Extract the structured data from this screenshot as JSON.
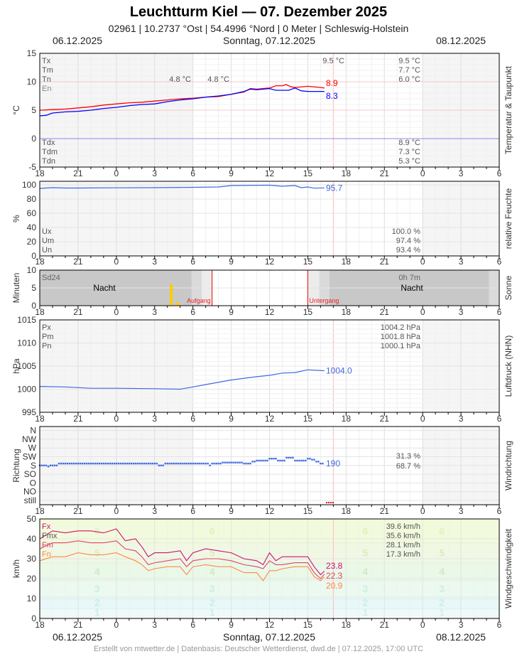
{
  "header": {
    "title": "Leuchtturm Kiel  —  07. Dezember 2025",
    "subtitle": "02961  |  10.2737 °Ost  |  54.4996 °Nord  |  0 Meter  |  Schleswig-Holstein",
    "date_left": "06.12.2025",
    "date_center": "Sonntag, 07.12.2025",
    "date_right": "08.12.2025"
  },
  "footer": "Erstellt von mtwetter.de | Datenbasis: Deutscher Wetterdienst, dwd.de | 07.12.2025, 17:00 UTC",
  "x_ticks": [
    "18",
    "21",
    "0",
    "3",
    "6",
    "9",
    "12",
    "15",
    "18",
    "21",
    "0",
    "3",
    "6"
  ],
  "chart_data": [
    {
      "type": "line",
      "title": "Temperatur & Taupunkt",
      "ylabel": "°C",
      "ylim": [
        -5,
        15
      ],
      "yticks": [
        "-5",
        "0",
        "5",
        "10",
        "15"
      ],
      "stats_labels": [
        "Tx",
        "Tm",
        "Tn",
        "En",
        "Tdx",
        "Tdm",
        "Tdn"
      ],
      "stats_values": {
        "Tx": "9.5 °C",
        "Tm": "7.7 °C",
        "Tn": "6.0 °C",
        "Tdx": "8.9 °C",
        "Tdm": "7.3 °C",
        "Tdn": "5.3 °C"
      },
      "annotations": {
        "max_today": "9.5 °C",
        "min_a": "4.8 °C",
        "min_b": "4.8 °C"
      },
      "series": [
        {
          "name": "Temperatur",
          "color": "#ff0000",
          "last": "8.9",
          "points": [
            [
              0,
              5.0
            ],
            [
              1,
              5.1
            ],
            [
              2,
              5.2
            ],
            [
              3,
              5.4
            ],
            [
              4,
              5.6
            ],
            [
              5,
              5.9
            ],
            [
              6,
              6.1
            ],
            [
              7,
              6.3
            ],
            [
              8,
              6.4
            ],
            [
              9,
              6.6
            ],
            [
              10,
              6.8
            ],
            [
              11,
              7.0
            ],
            [
              12,
              7.1
            ],
            [
              13,
              7.3
            ],
            [
              14,
              7.4
            ],
            [
              15,
              7.8
            ],
            [
              16,
              8.2
            ],
            [
              16.5,
              8.8
            ],
            [
              17,
              8.7
            ],
            [
              18,
              8.9
            ],
            [
              18.5,
              9.3
            ],
            [
              19,
              9.3
            ],
            [
              19.3,
              9.5
            ],
            [
              19.7,
              9.1
            ],
            [
              20,
              9.0
            ],
            [
              21,
              9.2
            ],
            [
              22,
              9.0
            ],
            [
              22.3,
              8.9
            ]
          ]
        },
        {
          "name": "Taupunkt",
          "color": "#0000ff",
          "last": "8.3",
          "points": [
            [
              0,
              4.0
            ],
            [
              0.5,
              4.1
            ],
            [
              1,
              4.5
            ],
            [
              2,
              4.7
            ],
            [
              3,
              4.8
            ],
            [
              4,
              5.0
            ],
            [
              5,
              5.3
            ],
            [
              6,
              5.5
            ],
            [
              7,
              5.8
            ],
            [
              8,
              6.0
            ],
            [
              9,
              6.1
            ],
            [
              10,
              6.5
            ],
            [
              11,
              6.8
            ],
            [
              12,
              7.0
            ],
            [
              13,
              7.3
            ],
            [
              14,
              7.5
            ],
            [
              15,
              7.8
            ],
            [
              16,
              8.3
            ],
            [
              16.5,
              8.7
            ],
            [
              17,
              8.6
            ],
            [
              18,
              8.8
            ],
            [
              18.5,
              8.5
            ],
            [
              19,
              8.5
            ],
            [
              19.5,
              8.5
            ],
            [
              20,
              8.9
            ],
            [
              20.5,
              8.4
            ],
            [
              21,
              8.3
            ],
            [
              22.3,
              8.3
            ]
          ]
        }
      ]
    },
    {
      "type": "line",
      "title": "relative Feuchte",
      "ylabel": "%",
      "ylim": [
        0,
        105
      ],
      "yticks": [
        "0",
        "20",
        "40",
        "60",
        "80",
        "100"
      ],
      "stats_labels": [
        "Ux",
        "Um",
        "Un"
      ],
      "stats_values": {
        "Ux": "100.0 %",
        "Um": "97.4 %",
        "Un": "93.4 %"
      },
      "series": [
        {
          "name": "Feuchte",
          "color": "#4169e1",
          "last": "95.7",
          "points": [
            [
              0,
              95
            ],
            [
              1,
              96
            ],
            [
              2,
              95.5
            ],
            [
              3,
              95.5
            ],
            [
              6,
              95.8
            ],
            [
              9,
              96
            ],
            [
              12,
              96.5
            ],
            [
              14,
              97
            ],
            [
              15,
              99
            ],
            [
              18,
              99.5
            ],
            [
              19,
              98
            ],
            [
              20,
              99
            ],
            [
              20.5,
              96
            ],
            [
              21,
              97
            ],
            [
              21.5,
              95.3
            ],
            [
              22.3,
              95.7
            ]
          ]
        }
      ]
    },
    {
      "type": "bar",
      "title": "Sonne",
      "ylabel": "Minuten",
      "ylim": [
        0,
        10
      ],
      "yticks": [
        "0",
        "5",
        "10"
      ],
      "stats_labels": [
        "Sd24"
      ],
      "stats_values": {
        "Sd24": "0h 7m"
      },
      "night_label": "Nacht",
      "sunrise_label": "Aufgang",
      "sunset_label": "Untergang",
      "sunrise_h": 13.5,
      "sunset_h": 21.0,
      "bars": [
        [
          10.3,
          6
        ],
        [
          10.8,
          1
        ]
      ]
    },
    {
      "type": "line",
      "title": "Luftdruck (NHN)",
      "ylabel": "hPa",
      "ylim": [
        995,
        1015
      ],
      "yticks": [
        "995",
        "1000",
        "1005",
        "1010",
        "1015"
      ],
      "stats_labels": [
        "Px",
        "Pm",
        "Pn"
      ],
      "stats_values": {
        "Px": "1004.2 hPa",
        "Pm": "1001.8 hPa",
        "Pn": "1000.1 hPa"
      },
      "series": [
        {
          "name": "Luftdruck",
          "color": "#4169e1",
          "last": "1004.0",
          "points": [
            [
              0,
              1000.6
            ],
            [
              2,
              1000.5
            ],
            [
              4,
              1000.2
            ],
            [
              6,
              1000.2
            ],
            [
              9,
              1000.1
            ],
            [
              11,
              1000.0
            ],
            [
              12,
              1000.5
            ],
            [
              13,
              1001.0
            ],
            [
              15,
              1002.0
            ],
            [
              17,
              1002.7
            ],
            [
              18,
              1003.0
            ],
            [
              19,
              1003.5
            ],
            [
              20,
              1003.6
            ],
            [
              21,
              1004.2
            ],
            [
              22.3,
              1004.0
            ]
          ]
        }
      ]
    },
    {
      "type": "scatter",
      "title": "Windrichtung",
      "ylabel": "Richtung",
      "yticks": [
        "still",
        "NO",
        "O",
        "SO",
        "S",
        "SW",
        "W",
        "NW",
        "N"
      ],
      "stats_values": [
        "31.3 %",
        "68.7 %"
      ],
      "last": "190",
      "points": [
        [
          0,
          180
        ],
        [
          0.6,
          175
        ],
        [
          0.8,
          180
        ],
        [
          1.5,
          190
        ],
        [
          9.3,
          180
        ],
        [
          9.7,
          190
        ],
        [
          13.2,
          180
        ],
        [
          13.5,
          190
        ],
        [
          14.3,
          195
        ],
        [
          16,
          190
        ],
        [
          16.6,
          200
        ],
        [
          17,
          205
        ],
        [
          18,
          215
        ],
        [
          18.6,
          205
        ],
        [
          19.2,
          220
        ],
        [
          20,
          205
        ],
        [
          21,
          215
        ],
        [
          21.3,
          210
        ],
        [
          21.6,
          200
        ],
        [
          22,
          190
        ],
        [
          22.3,
          190
        ]
      ]
    },
    {
      "type": "line",
      "title": "Windgeschwindigkeit",
      "ylabel": "km/h",
      "ylim": [
        0,
        50
      ],
      "yticks": [
        "0",
        "10",
        "20",
        "30",
        "40",
        "50"
      ],
      "stats_labels": [
        "Fx",
        "Fmx",
        "Fm",
        "Fn"
      ],
      "stats_values": {
        "Fx": "39.6 km/h",
        "Fmx": "35.6 km/h",
        "Fm": "28.1 km/h",
        "Fn": "17.3 km/h"
      },
      "beaufort": [
        "1",
        "2",
        "3",
        "4",
        "5",
        "6"
      ],
      "series": [
        {
          "name": "Fx",
          "color": "#cc1177",
          "last": "23.8",
          "points": [
            [
              0,
              40
            ],
            [
              1,
              44
            ],
            [
              2,
              43
            ],
            [
              3,
              44
            ],
            [
              4,
              44
            ],
            [
              5,
              43
            ],
            [
              6,
              45
            ],
            [
              6.7,
              39
            ],
            [
              7.5,
              40
            ],
            [
              8,
              36
            ],
            [
              8.5,
              31
            ],
            [
              9,
              33
            ],
            [
              10,
              33
            ],
            [
              11,
              34
            ],
            [
              11.5,
              29
            ],
            [
              12,
              33
            ],
            [
              13,
              35
            ],
            [
              14,
              34
            ],
            [
              15,
              33
            ],
            [
              16,
              30
            ],
            [
              17,
              29
            ],
            [
              17.5,
              27
            ],
            [
              18,
              33
            ],
            [
              18.5,
              29
            ],
            [
              19,
              31
            ],
            [
              20,
              31
            ],
            [
              21,
              31
            ],
            [
              21.5,
              26
            ],
            [
              22,
              22
            ],
            [
              22.3,
              23.8
            ]
          ]
        },
        {
          "name": "Fm",
          "color": "#e0446a",
          "last": "22.3",
          "points": [
            [
              0,
              35
            ],
            [
              1,
              38
            ],
            [
              2,
              38
            ],
            [
              3,
              39
            ],
            [
              4,
              38
            ],
            [
              5,
              38
            ],
            [
              6,
              39
            ],
            [
              6.7,
              35
            ],
            [
              7.5,
              34
            ],
            [
              8,
              31
            ],
            [
              8.5,
              27
            ],
            [
              9,
              28
            ],
            [
              10,
              29
            ],
            [
              11,
              30
            ],
            [
              11.5,
              26
            ],
            [
              12,
              29
            ],
            [
              13,
              30
            ],
            [
              14,
              30
            ],
            [
              15,
              29
            ],
            [
              16,
              27
            ],
            [
              17,
              26
            ],
            [
              17.5,
              25
            ],
            [
              18,
              29
            ],
            [
              18.5,
              27
            ],
            [
              19,
              27
            ],
            [
              20,
              28
            ],
            [
              21,
              28
            ],
            [
              21.5,
              23
            ],
            [
              22,
              20
            ],
            [
              22.3,
              22.3
            ]
          ]
        },
        {
          "name": "Fn",
          "color": "#ff8844",
          "last": "20.9",
          "points": [
            [
              0,
              29
            ],
            [
              1,
              31
            ],
            [
              2,
              31
            ],
            [
              3,
              33
            ],
            [
              4,
              32
            ],
            [
              5,
              32
            ],
            [
              6,
              33
            ],
            [
              6.7,
              31
            ],
            [
              7.5,
              29
            ],
            [
              8,
              27
            ],
            [
              8.5,
              24
            ],
            [
              9,
              25
            ],
            [
              10,
              26
            ],
            [
              11,
              26
            ],
            [
              11.5,
              22
            ],
            [
              12,
              26
            ],
            [
              13,
              27
            ],
            [
              14,
              26
            ],
            [
              15,
              26
            ],
            [
              16,
              23
            ],
            [
              17,
              23
            ],
            [
              17.5,
              19
            ],
            [
              18,
              24
            ],
            [
              18.5,
              24
            ],
            [
              19,
              25
            ],
            [
              20,
              26
            ],
            [
              21,
              26
            ],
            [
              21.5,
              21
            ],
            [
              22,
              19
            ],
            [
              22.3,
              20.9
            ]
          ]
        }
      ]
    }
  ]
}
